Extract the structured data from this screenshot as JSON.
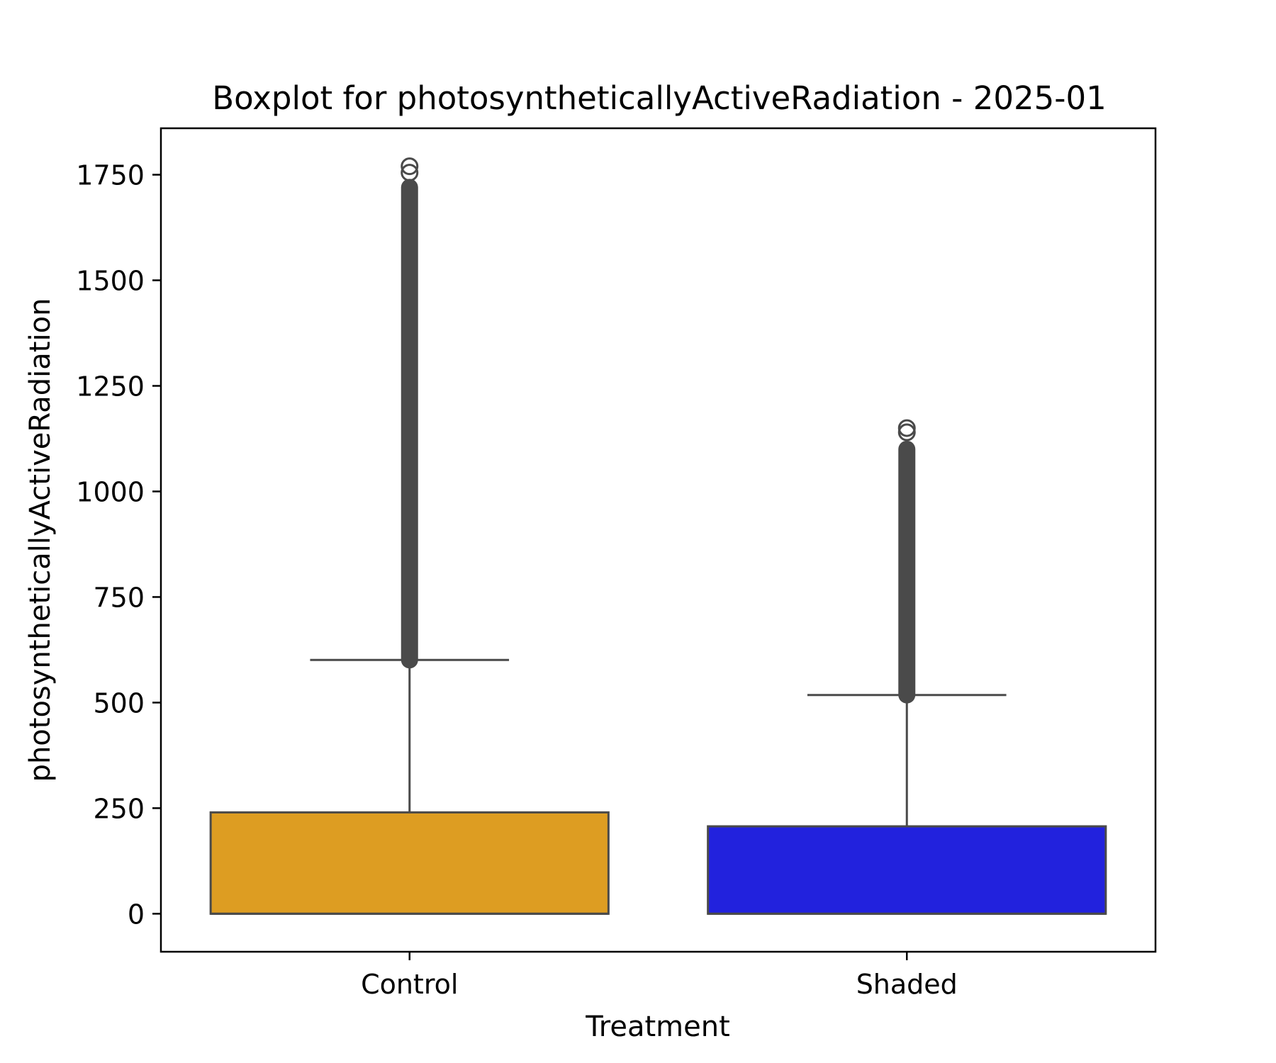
{
  "chart_data": {
    "type": "box",
    "title": "Boxplot for photosyntheticallyActiveRadiation - 2025-01",
    "xlabel": "Treatment",
    "ylabel": "photosyntheticallyActiveRadiation",
    "ylim": [
      -90,
      1860
    ],
    "yticks": [
      0,
      250,
      500,
      750,
      1000,
      1250,
      1500,
      1750
    ],
    "ytick_labels": [
      "0",
      "250",
      "500",
      "750",
      "1000",
      "1250",
      "1500",
      "1750"
    ],
    "grid": false,
    "categories": [
      "Control",
      "Shaded"
    ],
    "boxes": [
      {
        "category": "Control",
        "color": "#dd9d22",
        "q1": 0,
        "median": 0,
        "q3": 240,
        "whisker_low": 0,
        "whisker_high": 601,
        "outlier_min": 601,
        "outlier_max": 1720,
        "outliers_extreme": [
          1755,
          1770
        ]
      },
      {
        "category": "Shaded",
        "color": "#2222dd",
        "q1": 0,
        "median": 0,
        "q3": 207,
        "whisker_low": 0,
        "whisker_high": 518,
        "outlier_min": 518,
        "outlier_max": 1100,
        "outliers_extreme": [
          1140,
          1150
        ]
      }
    ]
  }
}
